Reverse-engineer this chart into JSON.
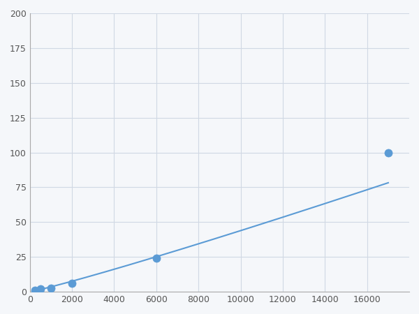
{
  "x": [
    250,
    500,
    1000,
    2000,
    6000,
    17000
  ],
  "y": [
    1.0,
    2.0,
    2.5,
    6.0,
    24.0,
    100.0
  ],
  "line_color": "#5b9bd5",
  "marker_color": "#5b9bd5",
  "marker_size": 8,
  "xlim": [
    0,
    18000
  ],
  "ylim": [
    0,
    200
  ],
  "xticks": [
    0,
    2000,
    4000,
    6000,
    8000,
    10000,
    12000,
    14000,
    16000
  ],
  "yticks": [
    0,
    25,
    50,
    75,
    100,
    125,
    150,
    175,
    200
  ],
  "grid_color": "#d0d8e4",
  "background_color": "#f5f7fa",
  "spine_color": "#aaaaaa"
}
